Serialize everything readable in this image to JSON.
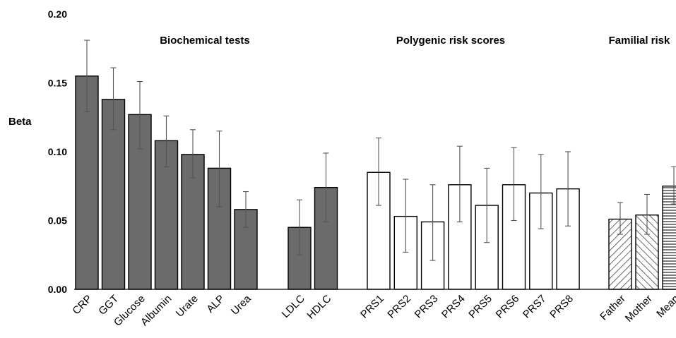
{
  "chart_data": {
    "type": "bar",
    "ylabel": "Beta",
    "xlabel": "",
    "ylim": [
      0,
      0.2
    ],
    "yticks": [
      "0.00",
      "0.05",
      "0.10",
      "0.15",
      "0.20"
    ],
    "ytick_values": [
      0,
      0.05,
      0.1,
      0.15,
      0.2
    ],
    "grid": false,
    "groups": [
      {
        "label": "Biochemical tests",
        "style": "solid-gray",
        "color": "#6b6b6b",
        "bars": [
          {
            "category": "CRP",
            "value": 0.155,
            "err_low": 0.129,
            "err_high": 0.181
          },
          {
            "category": "GGT",
            "value": 0.138,
            "err_low": 0.116,
            "err_high": 0.161
          },
          {
            "category": "Glucose",
            "value": 0.127,
            "err_low": 0.102,
            "err_high": 0.151
          },
          {
            "category": "Albumin",
            "value": 0.108,
            "err_low": 0.089,
            "err_high": 0.126
          },
          {
            "category": "Urate",
            "value": 0.098,
            "err_low": 0.081,
            "err_high": 0.116
          },
          {
            "category": "ALP",
            "value": 0.088,
            "err_low": 0.06,
            "err_high": 0.115
          },
          {
            "category": "Urea",
            "value": 0.058,
            "err_low": 0.045,
            "err_high": 0.071
          }
        ]
      },
      {
        "label": "",
        "style": "solid-gray",
        "color": "#6b6b6b",
        "bars": [
          {
            "category": "LDLC",
            "value": 0.045,
            "err_low": 0.025,
            "err_high": 0.065
          },
          {
            "category": "HDLC",
            "value": 0.074,
            "err_low": 0.049,
            "err_high": 0.099
          }
        ]
      },
      {
        "label": "Polygenic risk scores",
        "style": "white",
        "color": "#ffffff",
        "bars": [
          {
            "category": "PRS1",
            "value": 0.085,
            "err_low": 0.061,
            "err_high": 0.11
          },
          {
            "category": "PRS2",
            "value": 0.053,
            "err_low": 0.027,
            "err_high": 0.08
          },
          {
            "category": "PRS3",
            "value": 0.049,
            "err_low": 0.021,
            "err_high": 0.076
          },
          {
            "category": "PRS4",
            "value": 0.076,
            "err_low": 0.049,
            "err_high": 0.104
          },
          {
            "category": "PRS5",
            "value": 0.061,
            "err_low": 0.034,
            "err_high": 0.088
          },
          {
            "category": "PRS6",
            "value": 0.076,
            "err_low": 0.05,
            "err_high": 0.103
          },
          {
            "category": "PRS7",
            "value": 0.07,
            "err_low": 0.044,
            "err_high": 0.098
          },
          {
            "category": "PRS8",
            "value": 0.073,
            "err_low": 0.046,
            "err_high": 0.1
          }
        ]
      },
      {
        "label": "Familial risk",
        "style": "hatched",
        "color": "#555555",
        "bars": [
          {
            "category": "Father",
            "value": 0.051,
            "err_low": 0.04,
            "err_high": 0.063,
            "pattern": "diag-right"
          },
          {
            "category": "Mother",
            "value": 0.054,
            "err_low": 0.04,
            "err_high": 0.069,
            "pattern": "diag-left"
          },
          {
            "category": "Mean",
            "value": 0.075,
            "err_low": 0.062,
            "err_high": 0.089,
            "pattern": "horizontal"
          }
        ]
      }
    ]
  }
}
